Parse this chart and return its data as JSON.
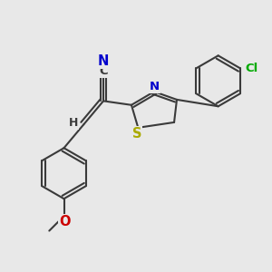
{
  "bg_color": "#e8e8e8",
  "bond_color": "#3a3a3a",
  "bond_lw": 1.5,
  "colors": {
    "N": "#0000cc",
    "S": "#aaaa00",
    "O": "#cc0000",
    "Cl": "#00aa00",
    "C": "#3a3a3a",
    "H": "#3a3a3a"
  },
  "font_size": 9.5
}
